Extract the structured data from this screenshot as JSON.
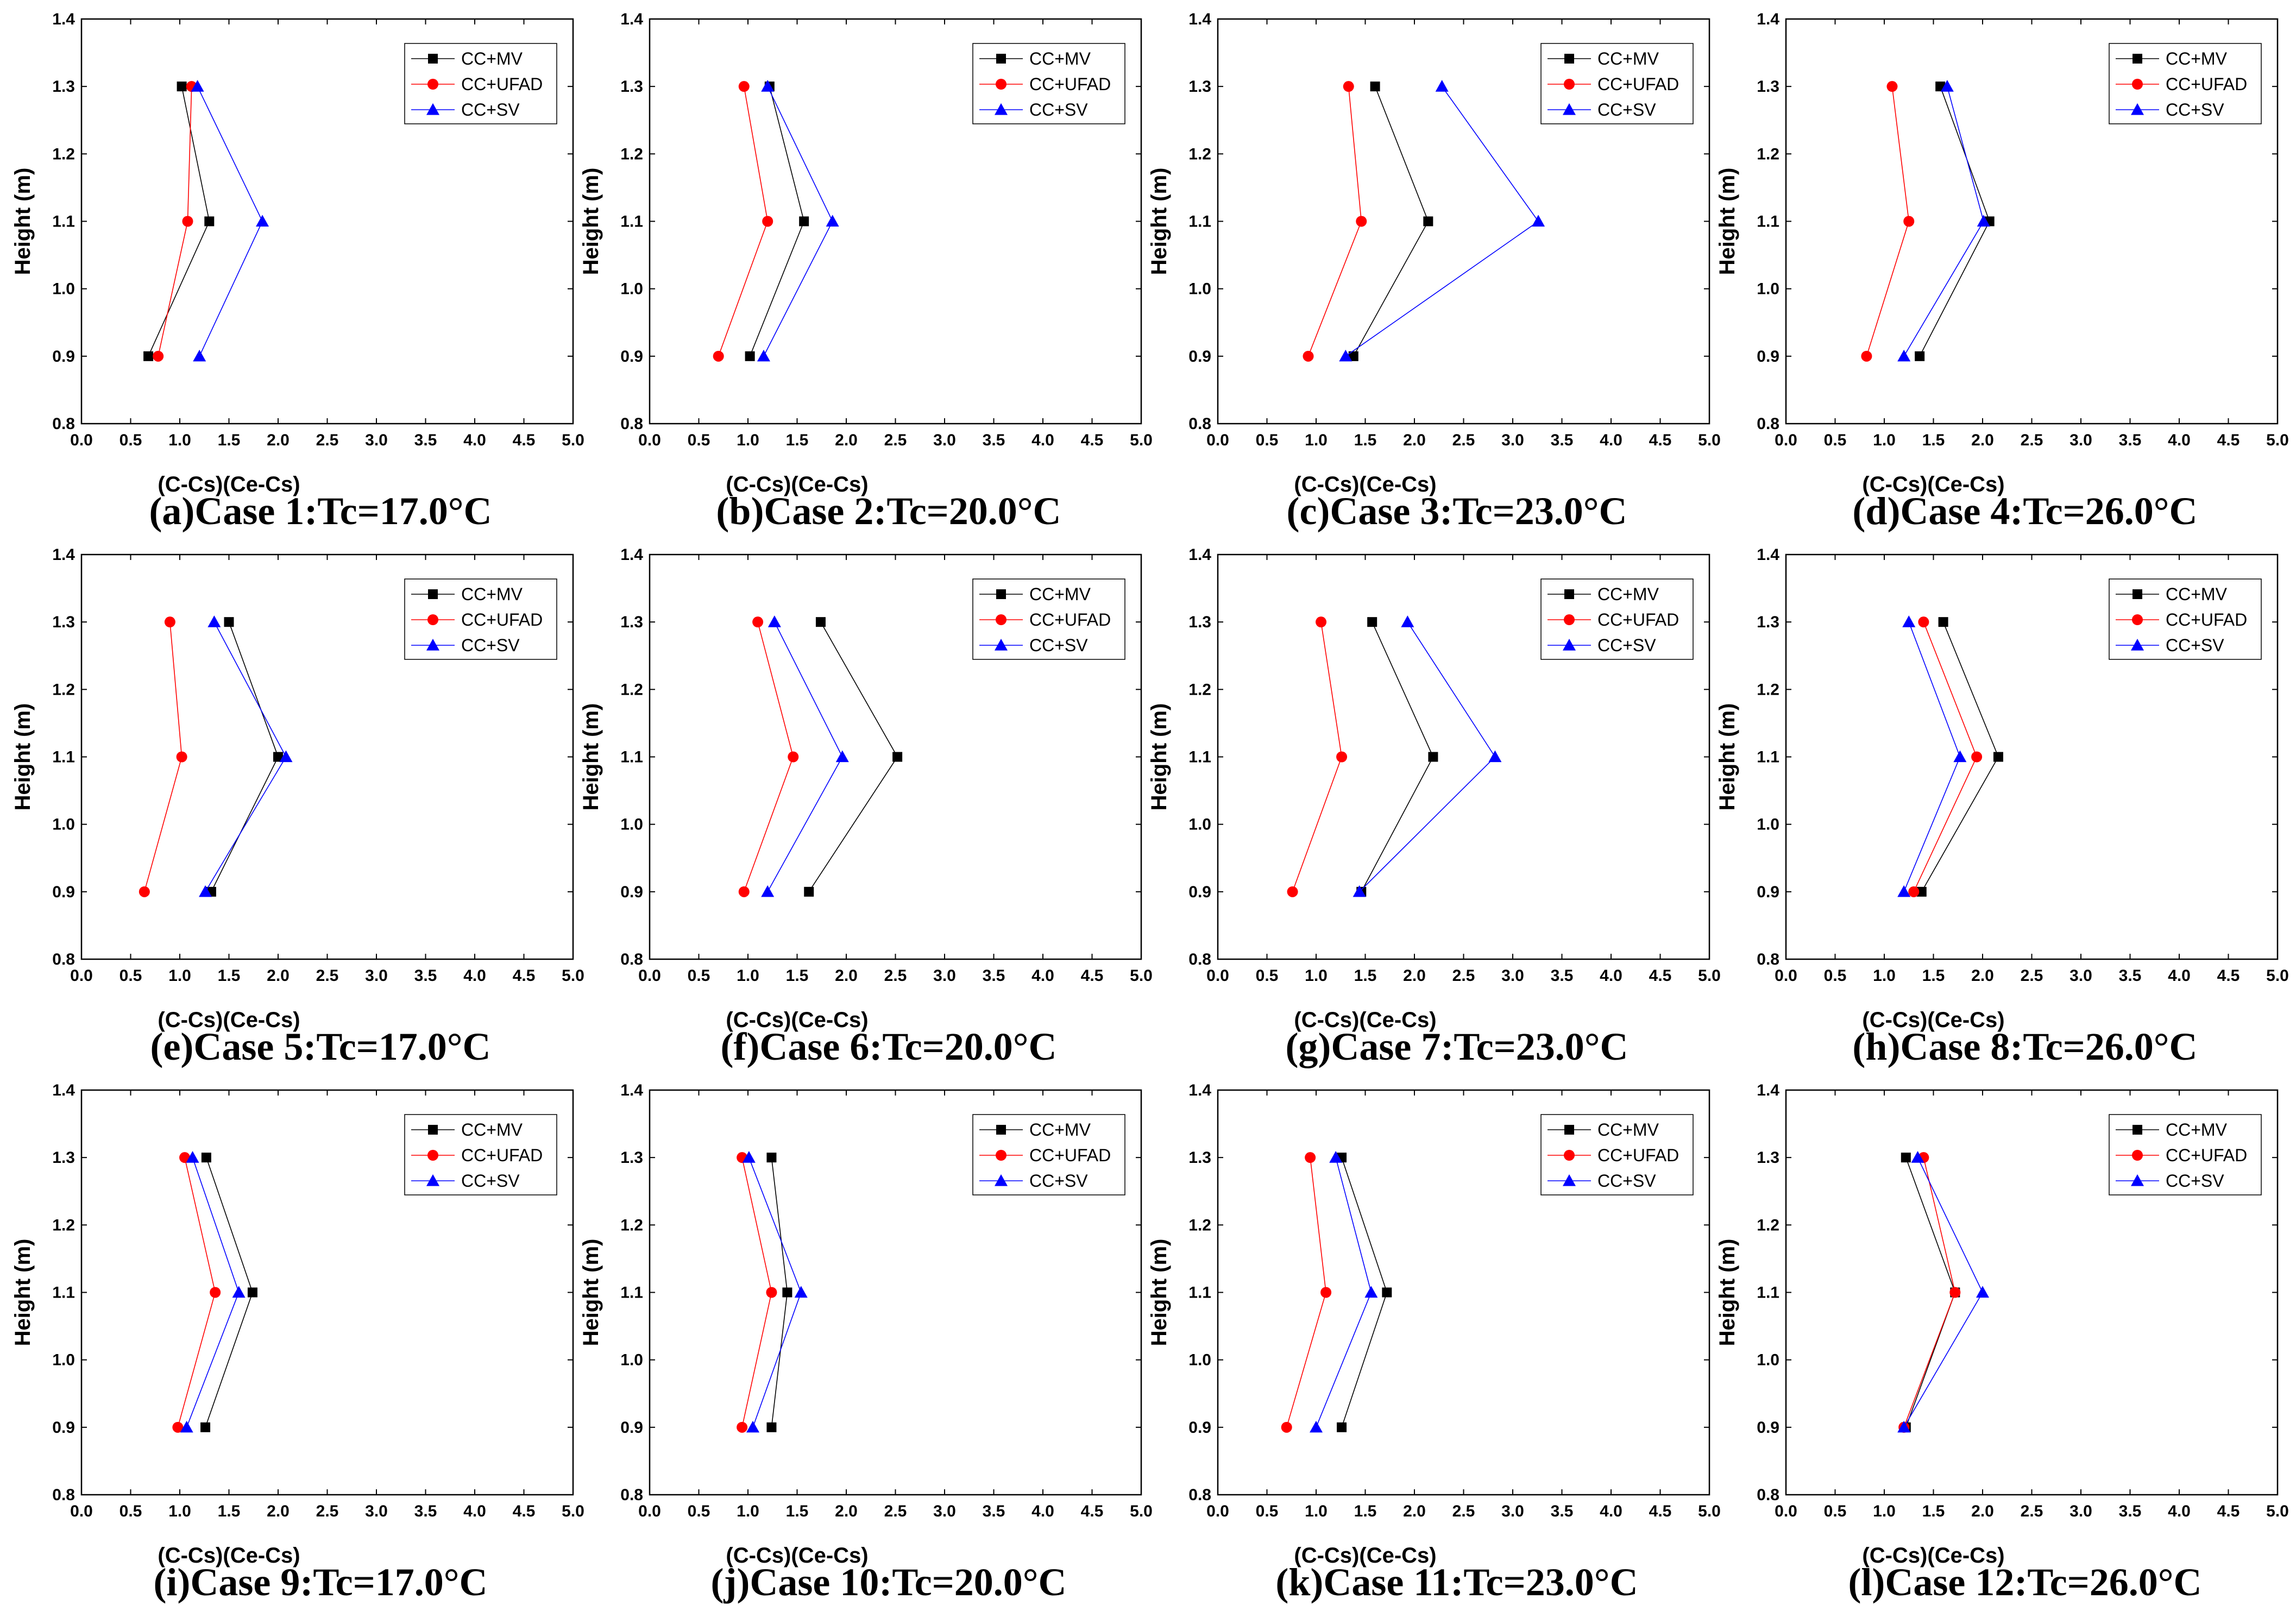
{
  "figure": {
    "legend": [
      "CC+MV",
      "CC+UFAD",
      "CC+SV"
    ],
    "colors": {
      "CC+MV": "#000000",
      "CC+UFAD": "#ff0000",
      "CC+SV": "#0000ff"
    },
    "markers": {
      "CC+MV": "square",
      "CC+UFAD": "circle",
      "CC+SV": "triangle"
    }
  },
  "chart_data": [
    {
      "type": "line",
      "title": "(a)Case 1:Tc=17.0°C",
      "xlabel": "(C-Cs)(Ce-Cs)",
      "ylabel": "Height (m)",
      "xlim": [
        0,
        5
      ],
      "ylim": [
        0.8,
        1.4
      ],
      "xticks": [
        "0.0",
        "0.5",
        "1.0",
        "1.5",
        "2.0",
        "2.5",
        "3.0",
        "3.5",
        "4.0",
        "4.5",
        "5.0"
      ],
      "yticks": [
        "0.8",
        "0.9",
        "1.0",
        "1.1",
        "1.2",
        "1.3",
        "1.4"
      ],
      "y": [
        0.9,
        1.1,
        1.3
      ],
      "series": [
        {
          "name": "CC+MV",
          "x": [
            0.68,
            1.3,
            1.02
          ]
        },
        {
          "name": "CC+UFAD",
          "x": [
            0.78,
            1.08,
            1.12
          ]
        },
        {
          "name": "CC+SV",
          "x": [
            1.2,
            1.84,
            1.18
          ]
        }
      ]
    },
    {
      "type": "line",
      "title": "(b)Case 2:Tc=20.0°C",
      "xlabel": "(C-Cs)(Ce-Cs)",
      "ylabel": "Height (m)",
      "xlim": [
        0,
        5
      ],
      "ylim": [
        0.8,
        1.4
      ],
      "xticks": [
        "0.0",
        "0.5",
        "1.0",
        "1.5",
        "2.0",
        "2.5",
        "3.0",
        "3.5",
        "4.0",
        "4.5",
        "5.0"
      ],
      "yticks": [
        "0.8",
        "0.9",
        "1.0",
        "1.1",
        "1.2",
        "1.3",
        "1.4"
      ],
      "y": [
        0.9,
        1.1,
        1.3
      ],
      "series": [
        {
          "name": "CC+MV",
          "x": [
            1.02,
            1.57,
            1.22
          ]
        },
        {
          "name": "CC+UFAD",
          "x": [
            0.7,
            1.2,
            0.96
          ]
        },
        {
          "name": "CC+SV",
          "x": [
            1.16,
            1.86,
            1.2
          ]
        }
      ]
    },
    {
      "type": "line",
      "title": "(c)Case 3:Tc=23.0°C",
      "xlabel": "(C-Cs)(Ce-Cs)",
      "ylabel": "Height (m)",
      "xlim": [
        0,
        5
      ],
      "ylim": [
        0.8,
        1.4
      ],
      "xticks": [
        "0.0",
        "0.5",
        "1.0",
        "1.5",
        "2.0",
        "2.5",
        "3.0",
        "3.5",
        "4.0",
        "4.5",
        "5.0"
      ],
      "yticks": [
        "0.8",
        "0.9",
        "1.0",
        "1.1",
        "1.2",
        "1.3",
        "1.4"
      ],
      "y": [
        0.9,
        1.1,
        1.3
      ],
      "series": [
        {
          "name": "CC+MV",
          "x": [
            1.38,
            2.14,
            1.6
          ]
        },
        {
          "name": "CC+UFAD",
          "x": [
            0.92,
            1.46,
            1.33
          ]
        },
        {
          "name": "CC+SV",
          "x": [
            1.3,
            3.26,
            2.28
          ]
        }
      ]
    },
    {
      "type": "line",
      "title": "(d)Case 4:Tc=26.0°C",
      "xlabel": "(C-Cs)(Ce-Cs)",
      "ylabel": "Height (m)",
      "xlim": [
        0,
        5
      ],
      "ylim": [
        0.8,
        1.4
      ],
      "xticks": [
        "0.0",
        "0.5",
        "1.0",
        "1.5",
        "2.0",
        "2.5",
        "3.0",
        "3.5",
        "4.0",
        "4.5",
        "5.0"
      ],
      "yticks": [
        "0.8",
        "0.9",
        "1.0",
        "1.1",
        "1.2",
        "1.3",
        "1.4"
      ],
      "y": [
        0.9,
        1.1,
        1.3
      ],
      "series": [
        {
          "name": "CC+MV",
          "x": [
            1.36,
            2.07,
            1.57
          ]
        },
        {
          "name": "CC+UFAD",
          "x": [
            0.82,
            1.25,
            1.08
          ]
        },
        {
          "name": "CC+SV",
          "x": [
            1.2,
            2.01,
            1.64
          ]
        }
      ]
    },
    {
      "type": "line",
      "title": "(e)Case 5:Tc=17.0°C",
      "xlabel": "(C-Cs)(Ce-Cs)",
      "ylabel": "Height (m)",
      "xlim": [
        0,
        5
      ],
      "ylim": [
        0.8,
        1.4
      ],
      "xticks": [
        "0.0",
        "0.5",
        "1.0",
        "1.5",
        "2.0",
        "2.5",
        "3.0",
        "3.5",
        "4.0",
        "4.5",
        "5.0"
      ],
      "yticks": [
        "0.8",
        "0.9",
        "1.0",
        "1.1",
        "1.2",
        "1.3",
        "1.4"
      ],
      "y": [
        0.9,
        1.1,
        1.3
      ],
      "series": [
        {
          "name": "CC+MV",
          "x": [
            1.32,
            2.0,
            1.5
          ]
        },
        {
          "name": "CC+UFAD",
          "x": [
            0.64,
            1.02,
            0.9
          ]
        },
        {
          "name": "CC+SV",
          "x": [
            1.26,
            2.08,
            1.35
          ]
        }
      ]
    },
    {
      "type": "line",
      "title": "(f)Case 6:Tc=20.0°C",
      "xlabel": "(C-Cs)(Ce-Cs)",
      "ylabel": "Height (m)",
      "xlim": [
        0,
        5
      ],
      "ylim": [
        0.8,
        1.4
      ],
      "xticks": [
        "0.0",
        "0.5",
        "1.0",
        "1.5",
        "2.0",
        "2.5",
        "3.0",
        "3.5",
        "4.0",
        "4.5",
        "5.0"
      ],
      "yticks": [
        "0.8",
        "0.9",
        "1.0",
        "1.1",
        "1.2",
        "1.3",
        "1.4"
      ],
      "y": [
        0.9,
        1.1,
        1.3
      ],
      "series": [
        {
          "name": "CC+MV",
          "x": [
            1.62,
            2.52,
            1.74
          ]
        },
        {
          "name": "CC+UFAD",
          "x": [
            0.96,
            1.46,
            1.1
          ]
        },
        {
          "name": "CC+SV",
          "x": [
            1.2,
            1.96,
            1.27
          ]
        }
      ]
    },
    {
      "type": "line",
      "title": "(g)Case 7:Tc=23.0°C",
      "xlabel": "(C-Cs)(Ce-Cs)",
      "ylabel": "Height (m)",
      "xlim": [
        0,
        5
      ],
      "ylim": [
        0.8,
        1.4
      ],
      "xticks": [
        "0.0",
        "0.5",
        "1.0",
        "1.5",
        "2.0",
        "2.5",
        "3.0",
        "3.5",
        "4.0",
        "4.5",
        "5.0"
      ],
      "yticks": [
        "0.8",
        "0.9",
        "1.0",
        "1.1",
        "1.2",
        "1.3",
        "1.4"
      ],
      "y": [
        0.9,
        1.1,
        1.3
      ],
      "series": [
        {
          "name": "CC+MV",
          "x": [
            1.46,
            2.19,
            1.57
          ]
        },
        {
          "name": "CC+UFAD",
          "x": [
            0.76,
            1.26,
            1.05
          ]
        },
        {
          "name": "CC+SV",
          "x": [
            1.44,
            2.82,
            1.93
          ]
        }
      ]
    },
    {
      "type": "line",
      "title": "(h)Case 8:Tc=26.0°C",
      "xlabel": "(C-Cs)(Ce-Cs)",
      "ylabel": "Height (m)",
      "xlim": [
        0,
        5
      ],
      "ylim": [
        0.8,
        1.4
      ],
      "xticks": [
        "0.0",
        "0.5",
        "1.0",
        "1.5",
        "2.0",
        "2.5",
        "3.0",
        "3.5",
        "4.0",
        "4.5",
        "5.0"
      ],
      "yticks": [
        "0.8",
        "0.9",
        "1.0",
        "1.1",
        "1.2",
        "1.3",
        "1.4"
      ],
      "y": [
        0.9,
        1.1,
        1.3
      ],
      "series": [
        {
          "name": "CC+MV",
          "x": [
            1.38,
            2.16,
            1.6
          ]
        },
        {
          "name": "CC+UFAD",
          "x": [
            1.3,
            1.94,
            1.4
          ]
        },
        {
          "name": "CC+SV",
          "x": [
            1.2,
            1.77,
            1.25
          ]
        }
      ]
    },
    {
      "type": "line",
      "title": "(i)Case 9:Tc=17.0°C",
      "xlabel": "(C-Cs)(Ce-Cs)",
      "ylabel": "Height (m)",
      "xlim": [
        0,
        5
      ],
      "ylim": [
        0.8,
        1.4
      ],
      "xticks": [
        "0.0",
        "0.5",
        "1.0",
        "1.5",
        "2.0",
        "2.5",
        "3.0",
        "3.5",
        "4.0",
        "4.5",
        "5.0"
      ],
      "yticks": [
        "0.8",
        "0.9",
        "1.0",
        "1.1",
        "1.2",
        "1.3",
        "1.4"
      ],
      "y": [
        0.9,
        1.1,
        1.3
      ],
      "series": [
        {
          "name": "CC+MV",
          "x": [
            1.26,
            1.74,
            1.27
          ]
        },
        {
          "name": "CC+UFAD",
          "x": [
            0.98,
            1.36,
            1.05
          ]
        },
        {
          "name": "CC+SV",
          "x": [
            1.07,
            1.6,
            1.13
          ]
        }
      ]
    },
    {
      "type": "line",
      "title": "(j)Case 10:Tc=20.0°C",
      "xlabel": "(C-Cs)(Ce-Cs)",
      "ylabel": "Height (m)",
      "xlim": [
        0,
        5
      ],
      "ylim": [
        0.8,
        1.4
      ],
      "xticks": [
        "0.0",
        "0.5",
        "1.0",
        "1.5",
        "2.0",
        "2.5",
        "3.0",
        "3.5",
        "4.0",
        "4.5",
        "5.0"
      ],
      "yticks": [
        "0.8",
        "0.9",
        "1.0",
        "1.1",
        "1.2",
        "1.3",
        "1.4"
      ],
      "y": [
        0.9,
        1.1,
        1.3
      ],
      "series": [
        {
          "name": "CC+MV",
          "x": [
            1.24,
            1.4,
            1.24
          ]
        },
        {
          "name": "CC+UFAD",
          "x": [
            0.94,
            1.24,
            0.94
          ]
        },
        {
          "name": "CC+SV",
          "x": [
            1.05,
            1.54,
            1.01
          ]
        }
      ]
    },
    {
      "type": "line",
      "title": "(k)Case 11:Tc=23.0°C",
      "xlabel": "(C-Cs)(Ce-Cs)",
      "ylabel": "Height (m)",
      "xlim": [
        0,
        5
      ],
      "ylim": [
        0.8,
        1.4
      ],
      "xticks": [
        "0.0",
        "0.5",
        "1.0",
        "1.5",
        "2.0",
        "2.5",
        "3.0",
        "3.5",
        "4.0",
        "4.5",
        "5.0"
      ],
      "yticks": [
        "0.8",
        "0.9",
        "1.0",
        "1.1",
        "1.2",
        "1.3",
        "1.4"
      ],
      "y": [
        0.9,
        1.1,
        1.3
      ],
      "series": [
        {
          "name": "CC+MV",
          "x": [
            1.26,
            1.72,
            1.26
          ]
        },
        {
          "name": "CC+UFAD",
          "x": [
            0.7,
            1.1,
            0.94
          ]
        },
        {
          "name": "CC+SV",
          "x": [
            1.0,
            1.56,
            1.2
          ]
        }
      ]
    },
    {
      "type": "line",
      "title": "(l)Case 12:Tc=26.0°C",
      "xlabel": "(C-Cs)(Ce-Cs)",
      "ylabel": "Height (m)",
      "xlim": [
        0,
        5
      ],
      "ylim": [
        0.8,
        1.4
      ],
      "xticks": [
        "0.0",
        "0.5",
        "1.0",
        "1.5",
        "2.0",
        "2.5",
        "3.0",
        "3.5",
        "4.0",
        "4.5",
        "5.0"
      ],
      "yticks": [
        "0.8",
        "0.9",
        "1.0",
        "1.1",
        "1.2",
        "1.3",
        "1.4"
      ],
      "y": [
        0.9,
        1.1,
        1.3
      ],
      "series": [
        {
          "name": "CC+MV",
          "x": [
            1.22,
            1.72,
            1.22
          ]
        },
        {
          "name": "CC+UFAD",
          "x": [
            1.2,
            1.72,
            1.4
          ]
        },
        {
          "name": "CC+SV",
          "x": [
            1.2,
            2.0,
            1.34
          ]
        }
      ]
    }
  ]
}
